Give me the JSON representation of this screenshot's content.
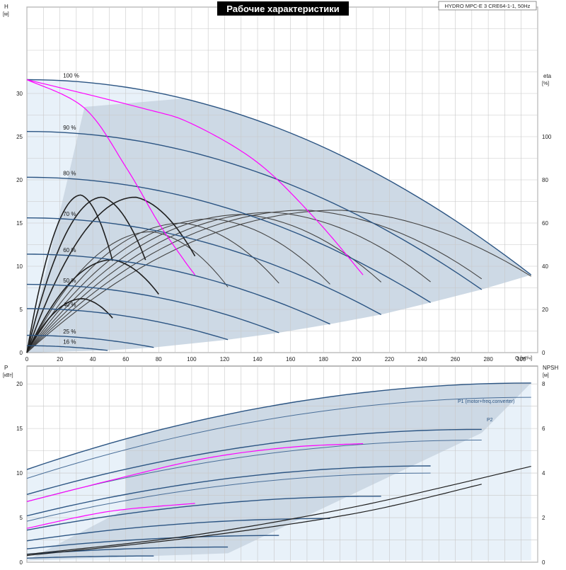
{
  "chart_data": {
    "type": "line",
    "title": "Рабочие характеристики",
    "model": "HYDRO MPC-E 3 CRE64-1-1, 50Hz",
    "colors": {
      "band_fill": "#cdd9e5",
      "band_light": "#e8f1f9",
      "pump_curve": "#2c5583",
      "eff_curve": "#1f1f1f",
      "npsh_curve": "#1f1f1f",
      "system_curve": "#ff00ff",
      "grid": "#c8c8c8",
      "title_bg": "#000000",
      "title_fg": "#ffffff",
      "label_blue": "#2c5583"
    },
    "top": {
      "xlabel": "Q [м³/ч]",
      "ylabel_left": "H",
      "ylabel_left_unit": "[м]",
      "ylabel_right": "eta",
      "ylabel_right_unit": "[%]",
      "xlim": [
        0,
        310
      ],
      "ylim": [
        0,
        40
      ],
      "y2lim": [
        0,
        160
      ],
      "xticks": [
        0,
        20,
        40,
        60,
        80,
        100,
        120,
        140,
        160,
        180,
        200,
        220,
        240,
        260,
        280,
        300
      ],
      "yticks": [
        0,
        5,
        10,
        15,
        20,
        25,
        30
      ],
      "y2ticks": [
        0,
        20,
        40,
        60,
        80,
        100
      ],
      "speed_curves": [
        {
          "label": "100 %",
          "shutoff_head": 31.6,
          "qmax": 306,
          "hmax_end": 9.0
        },
        {
          "label": "90 %",
          "shutoff_head": 25.6,
          "qmax": 276,
          "hmax_end": 7.3
        },
        {
          "label": "80 %",
          "shutoff_head": 20.3,
          "qmax": 245,
          "hmax_end": 5.8
        },
        {
          "label": "70 %",
          "shutoff_head": 15.6,
          "qmax": 215,
          "hmax_end": 4.4
        },
        {
          "label": "60 %",
          "shutoff_head": 11.4,
          "qmax": 184,
          "hmax_end": 3.3
        },
        {
          "label": "50 %",
          "shutoff_head": 7.9,
          "qmax": 153,
          "hmax_end": 2.3
        },
        {
          "label": "40 %",
          "shutoff_head": 5.1,
          "qmax": 122,
          "hmax_end": 1.5
        },
        {
          "label": "25 %",
          "shutoff_head": 2.0,
          "qmax": 77,
          "hmax_end": 0.6
        },
        {
          "label": "16 %",
          "shutoff_head": 0.8,
          "qmax": 49,
          "hmax_end": 0.25
        }
      ],
      "efficiency_curves": [
        {
          "qmax": 306,
          "peak_q": 190,
          "peak_eta": 66
        },
        {
          "qmax": 276,
          "peak_q": 170,
          "peak_eta": 66
        },
        {
          "qmax": 245,
          "peak_q": 150,
          "peak_eta": 65
        },
        {
          "qmax": 215,
          "peak_q": 132,
          "peak_eta": 64
        },
        {
          "qmax": 184,
          "peak_q": 113,
          "peak_eta": 62
        },
        {
          "qmax": 153,
          "peak_q": 95,
          "peak_eta": 60
        },
        {
          "qmax": 122,
          "peak_q": 76,
          "peak_eta": 56
        },
        {
          "qmax": 102,
          "peak_q": 66,
          "peak_eta": 72
        },
        {
          "qmax": 72,
          "peak_q": 46,
          "peak_eta": 72
        },
        {
          "qmax": 52,
          "peak_q": 33,
          "peak_eta": 73
        },
        {
          "qmax": 80,
          "peak_q": 52,
          "peak_eta": 43
        },
        {
          "qmax": 52,
          "peak_q": 34,
          "peak_eta": 25
        }
      ],
      "system_curves": [
        {
          "q": [
            0,
            35,
            60,
            80,
            95,
            102
          ],
          "h": [
            31.6,
            28.3,
            21.5,
            15,
            10.8,
            9
          ]
        },
        {
          "q": [
            0,
            70,
            100,
            140,
            175,
            204
          ],
          "h": [
            31.6,
            28.3,
            26.5,
            22,
            15.5,
            9
          ]
        }
      ]
    },
    "bottom": {
      "ylabel_left": "P",
      "ylabel_left_unit": "[кВт]",
      "ylabel_right": "NPSH",
      "ylabel_right_unit": "[м]",
      "xlim": [
        0,
        310
      ],
      "ylim": [
        0,
        22
      ],
      "y2lim": [
        0,
        8.8
      ],
      "yticks": [
        0,
        5,
        10,
        15,
        20
      ],
      "y2ticks": [
        0,
        2,
        4,
        6,
        8
      ],
      "series_labels": [
        "P1 (motor+freq.converter)",
        "P2"
      ],
      "p1_curves": [
        {
          "p0": 10.4,
          "q": 306,
          "p": 20.1
        },
        {
          "p0": 7.6,
          "q": 276,
          "p": 14.9
        },
        {
          "p0": 5.2,
          "q": 245,
          "p": 10.8
        },
        {
          "p0": 3.6,
          "q": 215,
          "p": 7.4
        },
        {
          "p0": 2.4,
          "q": 184,
          "p": 4.9
        },
        {
          "p0": 1.5,
          "q": 153,
          "p": 3.0
        },
        {
          "p0": 0.9,
          "q": 122,
          "p": 1.7
        },
        {
          "p0": 0.45,
          "q": 77,
          "p": 0.7
        }
      ],
      "p2_curves": [
        {
          "p0": 9.4,
          "q": 306,
          "p": 18.5
        },
        {
          "p0": 6.8,
          "q": 276,
          "p": 13.7
        },
        {
          "p0": 4.6,
          "q": 245,
          "p": 10.0
        }
      ],
      "system_power": [
        {
          "q": [
            0,
            50,
            102
          ],
          "p": [
            3.8,
            5.7,
            6.6
          ]
        },
        {
          "q": [
            0,
            60,
            110,
            160,
            204
          ],
          "p": [
            6.8,
            9.6,
            11.7,
            12.9,
            13.3
          ]
        }
      ],
      "npsh_curves": [
        {
          "q": [
            0,
            100,
            200,
            306
          ],
          "npsh": [
            0.35,
            1.2,
            2.5,
            4.3
          ]
        },
        {
          "q": [
            0,
            100,
            200,
            276
          ],
          "npsh": [
            0.3,
            1.1,
            2.2,
            3.5
          ]
        }
      ]
    }
  }
}
